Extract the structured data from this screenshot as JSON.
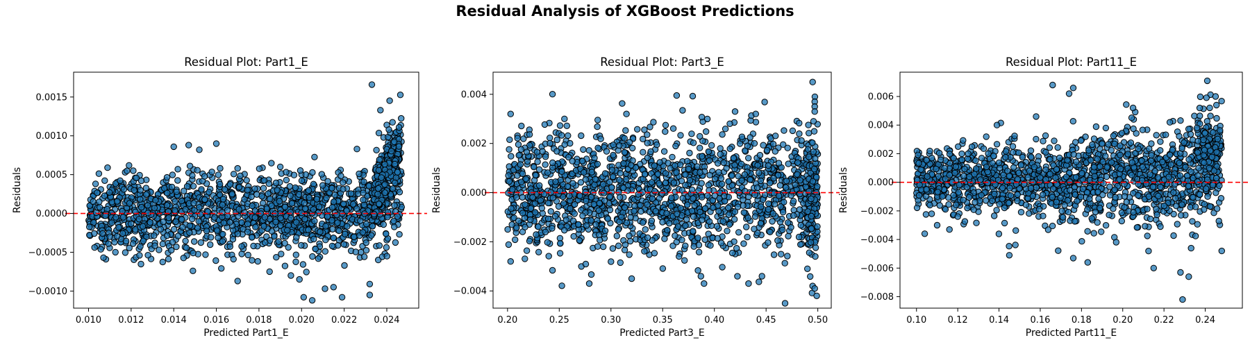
{
  "figure": {
    "title": "Residual Analysis of XGBoost Predictions"
  },
  "colors": {
    "point_fill": "#1f77b4",
    "point_edge": "#000000",
    "zero_line": "#ff0000"
  },
  "chart_data": [
    {
      "type": "scatter",
      "title": "Residual Plot: Part1_E",
      "xlabel": "Predicted Part1_E",
      "ylabel": "Residuals",
      "xlim": [
        0.0093,
        0.0255
      ],
      "ylim": [
        -0.00122,
        0.00182
      ],
      "xticks": [
        0.01,
        0.012,
        0.014,
        0.016,
        0.018,
        0.02,
        0.022,
        0.024
      ],
      "xtick_labels": [
        "0.010",
        "0.012",
        "0.014",
        "0.016",
        "0.018",
        "0.020",
        "0.022",
        "0.024"
      ],
      "yticks": [
        -0.001,
        -0.0005,
        0.0,
        0.0005,
        0.001,
        0.0015
      ],
      "ytick_labels": [
        "−0.0010",
        "−0.0005",
        "0.0000",
        "0.0005",
        "0.0010",
        "0.0015"
      ],
      "reference_line": {
        "y": 0,
        "style": "dashed",
        "color": "red"
      },
      "points_sample": [
        [
          0.0233,
          0.00166
        ],
        [
          0.0237,
          0.00133
        ],
        [
          0.024,
          0.00114
        ],
        [
          0.0241,
          0.00108
        ],
        [
          0.016,
          0.0009
        ],
        [
          0.0147,
          0.00088
        ],
        [
          0.014,
          0.00086
        ],
        [
          0.0226,
          0.00083
        ],
        [
          0.0152,
          0.00082
        ],
        [
          0.0121,
          0.00055
        ],
        [
          0.019,
          0.0006
        ],
        [
          0.0202,
          0.0005
        ],
        [
          0.0105,
          0.00015
        ],
        [
          0.011,
          -0.0003
        ],
        [
          0.0107,
          -0.00057
        ],
        [
          0.0149,
          -0.00074
        ],
        [
          0.017,
          -0.00087
        ],
        [
          0.0185,
          -0.00075
        ],
        [
          0.0195,
          -0.0008
        ],
        [
          0.0199,
          -0.00085
        ],
        [
          0.0201,
          -0.00108
        ],
        [
          0.0205,
          -0.00112
        ],
        [
          0.0211,
          -0.00097
        ],
        [
          0.0215,
          -0.00095
        ],
        [
          0.0219,
          -0.00108
        ],
        [
          0.0232,
          -0.00091
        ],
        [
          0.0232,
          -0.00105
        ],
        [
          0.0245,
          -4e-05
        ]
      ]
    },
    {
      "type": "scatter",
      "title": "Residual Plot: Part3_E",
      "xlabel": "Predicted Part3_E",
      "ylabel": "Residuals",
      "xlim": [
        0.186,
        0.513
      ],
      "ylim": [
        -0.0047,
        0.0049
      ],
      "xticks": [
        0.2,
        0.25,
        0.3,
        0.35,
        0.4,
        0.45,
        0.5
      ],
      "xtick_labels": [
        "0.20",
        "0.25",
        "0.30",
        "0.35",
        "0.40",
        "0.45",
        "0.50"
      ],
      "yticks": [
        -0.004,
        -0.002,
        0.0,
        0.002,
        0.004
      ],
      "ytick_labels": [
        "−0.004",
        "−0.002",
        "0.000",
        "0.002",
        "0.004"
      ],
      "reference_line": {
        "y": 0,
        "style": "dashed",
        "color": "red"
      },
      "points_sample": [
        [
          0.203,
          0.0032
        ],
        [
          0.495,
          0.0045
        ],
        [
          0.497,
          0.0037
        ],
        [
          0.497,
          0.0035
        ],
        [
          0.497,
          0.0033
        ],
        [
          0.42,
          0.0033
        ],
        [
          0.44,
          0.0032
        ],
        [
          0.315,
          0.0032
        ],
        [
          0.255,
          0.003
        ],
        [
          0.203,
          -0.0028
        ],
        [
          0.279,
          -0.0037
        ],
        [
          0.32,
          -0.0035
        ],
        [
          0.387,
          -0.0034
        ],
        [
          0.39,
          -0.0037
        ],
        [
          0.433,
          -0.0037
        ],
        [
          0.446,
          -0.0034
        ],
        [
          0.495,
          -0.0038
        ],
        [
          0.497,
          -0.0039
        ],
        [
          0.499,
          -0.0042
        ],
        [
          0.49,
          -0.0031
        ]
      ]
    },
    {
      "type": "scatter",
      "title": "Residual Plot: Part11_E",
      "xlabel": "Predicted Part11_E",
      "ylabel": "Residuals",
      "xlim": [
        0.092,
        0.258
      ],
      "ylim": [
        -0.0088,
        0.0077
      ],
      "xticks": [
        0.1,
        0.12,
        0.14,
        0.16,
        0.18,
        0.2,
        0.22,
        0.24
      ],
      "xtick_labels": [
        "0.10",
        "0.12",
        "0.14",
        "0.16",
        "0.18",
        "0.20",
        "0.22",
        "0.24"
      ],
      "yticks": [
        -0.008,
        -0.006,
        -0.004,
        -0.002,
        0.0,
        0.002,
        0.004,
        0.006
      ],
      "ytick_labels": [
        "−0.008",
        "−0.006",
        "−0.004",
        "−0.002",
        "0.000",
        "0.002",
        "0.004",
        "0.006"
      ],
      "reference_line": {
        "y": 0,
        "style": "dashed",
        "color": "red"
      },
      "points_sample": [
        [
          0.241,
          0.0071
        ],
        [
          0.166,
          0.0068
        ],
        [
          0.176,
          0.0066
        ],
        [
          0.174,
          0.0062
        ],
        [
          0.139,
          0.004
        ],
        [
          0.158,
          0.0046
        ],
        [
          0.205,
          0.0052
        ],
        [
          0.245,
          0.006
        ],
        [
          0.145,
          -0.0051
        ],
        [
          0.176,
          -0.0053
        ],
        [
          0.183,
          -0.0056
        ],
        [
          0.215,
          -0.006
        ],
        [
          0.228,
          -0.0063
        ],
        [
          0.232,
          -0.0066
        ],
        [
          0.229,
          -0.0082
        ],
        [
          0.248,
          -0.0048
        ],
        [
          0.104,
          -0.0036
        ],
        [
          0.11,
          -0.003
        ],
        [
          0.12,
          -0.0024
        ]
      ]
    }
  ]
}
